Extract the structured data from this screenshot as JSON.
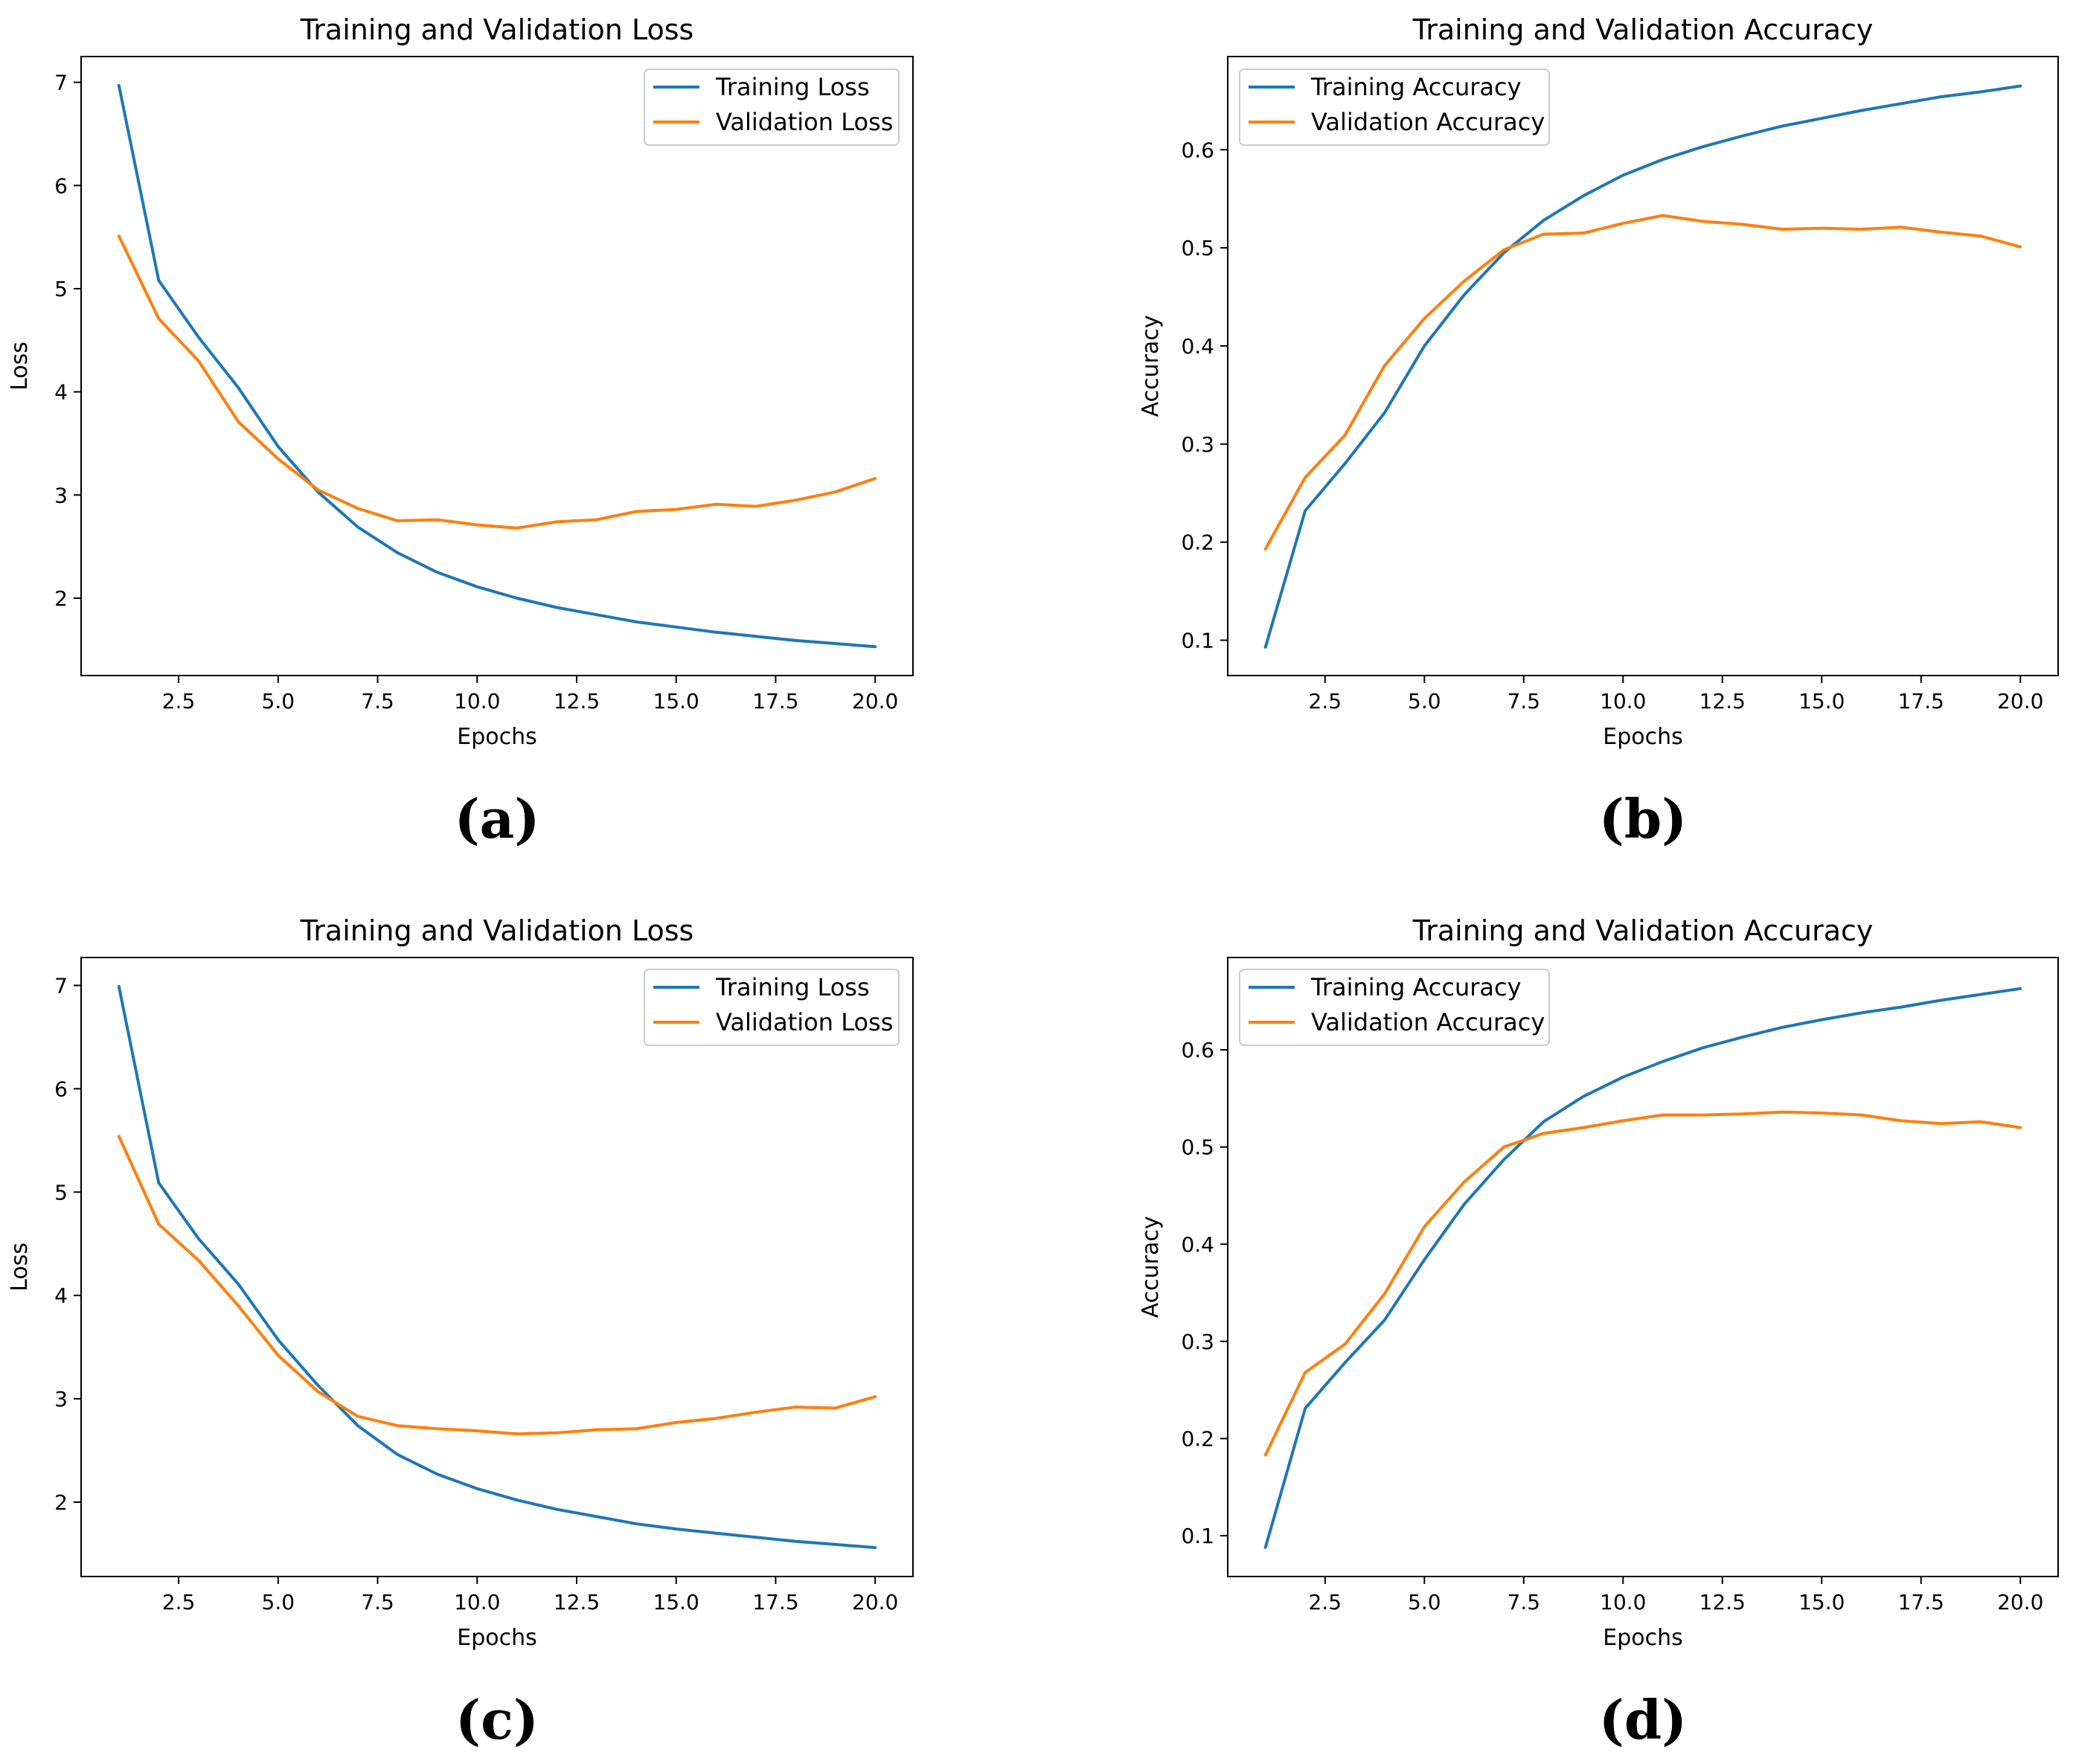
{
  "chart_data": [
    {
      "panel_label": "(a)",
      "type": "line",
      "title": "Training and Validation Loss",
      "xlabel": "Epochs",
      "ylabel": "Loss",
      "xlim": [
        0.05,
        20.95
      ],
      "ylim": [
        1.25,
        7.25
      ],
      "xticks": [
        2.5,
        5.0,
        7.5,
        10.0,
        12.5,
        15.0,
        17.5,
        20.0
      ],
      "xtick_labels": [
        "2.5",
        "5.0",
        "7.5",
        "10.0",
        "12.5",
        "15.0",
        "17.5",
        "20.0"
      ],
      "yticks": [
        2,
        3,
        4,
        5,
        6,
        7
      ],
      "ytick_labels": [
        "2",
        "3",
        "4",
        "5",
        "6",
        "7"
      ],
      "legend_position": "top-right",
      "x": [
        1,
        2,
        3,
        4,
        5,
        6,
        7,
        8,
        9,
        10,
        11,
        12,
        13,
        14,
        15,
        16,
        17,
        18,
        19,
        20
      ],
      "series": [
        {
          "name": "Training Loss",
          "color": "#1f77b4",
          "values": [
            6.97,
            5.08,
            4.53,
            4.04,
            3.47,
            3.03,
            2.69,
            2.44,
            2.25,
            2.11,
            2.0,
            1.91,
            1.84,
            1.77,
            1.72,
            1.67,
            1.63,
            1.59,
            1.56,
            1.53
          ]
        },
        {
          "name": "Validation Loss",
          "color": "#ff7f0e",
          "values": [
            5.51,
            4.71,
            4.3,
            3.71,
            3.35,
            3.05,
            2.87,
            2.75,
            2.76,
            2.71,
            2.68,
            2.74,
            2.76,
            2.84,
            2.86,
            2.91,
            2.89,
            2.95,
            3.03,
            3.16
          ]
        }
      ]
    },
    {
      "panel_label": "(b)",
      "type": "line",
      "title": "Training and Validation Accuracy",
      "xlabel": "Epochs",
      "ylabel": "Accuracy",
      "xlim": [
        0.05,
        20.95
      ],
      "ylim": [
        0.064,
        0.695
      ],
      "xticks": [
        2.5,
        5.0,
        7.5,
        10.0,
        12.5,
        15.0,
        17.5,
        20.0
      ],
      "xtick_labels": [
        "2.5",
        "5.0",
        "7.5",
        "10.0",
        "12.5",
        "15.0",
        "17.5",
        "20.0"
      ],
      "yticks": [
        0.1,
        0.2,
        0.3,
        0.4,
        0.5,
        0.6
      ],
      "ytick_labels": [
        "0.1",
        "0.2",
        "0.3",
        "0.4",
        "0.5",
        "0.6"
      ],
      "legend_position": "top-left",
      "x": [
        1,
        2,
        3,
        4,
        5,
        6,
        7,
        8,
        9,
        10,
        11,
        12,
        13,
        14,
        15,
        16,
        17,
        18,
        19,
        20
      ],
      "series": [
        {
          "name": "Training Accuracy",
          "color": "#1f77b4",
          "values": [
            0.093,
            0.232,
            0.28,
            0.332,
            0.4,
            0.452,
            0.495,
            0.528,
            0.553,
            0.574,
            0.59,
            0.603,
            0.614,
            0.624,
            0.632,
            0.64,
            0.647,
            0.654,
            0.659,
            0.665
          ]
        },
        {
          "name": "Validation Accuracy",
          "color": "#ff7f0e",
          "values": [
            0.193,
            0.266,
            0.309,
            0.38,
            0.428,
            0.466,
            0.498,
            0.514,
            0.515,
            0.525,
            0.533,
            0.527,
            0.524,
            0.519,
            0.52,
            0.519,
            0.521,
            0.516,
            0.512,
            0.501
          ]
        }
      ]
    },
    {
      "panel_label": "(c)",
      "type": "line",
      "title": "Training and Validation Loss",
      "xlabel": "Epochs",
      "ylabel": "Loss",
      "xlim": [
        0.05,
        20.95
      ],
      "ylim": [
        1.28,
        7.27
      ],
      "xticks": [
        2.5,
        5.0,
        7.5,
        10.0,
        12.5,
        15.0,
        17.5,
        20.0
      ],
      "xtick_labels": [
        "2.5",
        "5.0",
        "7.5",
        "10.0",
        "12.5",
        "15.0",
        "17.5",
        "20.0"
      ],
      "yticks": [
        2,
        3,
        4,
        5,
        6,
        7
      ],
      "ytick_labels": [
        "2",
        "3",
        "4",
        "5",
        "6",
        "7"
      ],
      "legend_position": "top-right",
      "x": [
        1,
        2,
        3,
        4,
        5,
        6,
        7,
        8,
        9,
        10,
        11,
        12,
        13,
        14,
        15,
        16,
        17,
        18,
        19,
        20
      ],
      "series": [
        {
          "name": "Training Loss",
          "color": "#1f77b4",
          "values": [
            6.99,
            5.09,
            4.55,
            4.11,
            3.57,
            3.13,
            2.74,
            2.46,
            2.27,
            2.13,
            2.02,
            1.93,
            1.86,
            1.79,
            1.74,
            1.7,
            1.66,
            1.62,
            1.59,
            1.56
          ]
        },
        {
          "name": "Validation Loss",
          "color": "#ff7f0e",
          "values": [
            5.54,
            4.69,
            4.34,
            3.9,
            3.42,
            3.07,
            2.83,
            2.74,
            2.71,
            2.69,
            2.66,
            2.67,
            2.7,
            2.71,
            2.77,
            2.81,
            2.87,
            2.92,
            2.91,
            3.02
          ]
        }
      ]
    },
    {
      "panel_label": "(d)",
      "type": "line",
      "title": "Training and Validation Accuracy",
      "xlabel": "Epochs",
      "ylabel": "Accuracy",
      "xlim": [
        0.05,
        20.95
      ],
      "ylim": [
        0.058,
        0.695
      ],
      "xticks": [
        2.5,
        5.0,
        7.5,
        10.0,
        12.5,
        15.0,
        17.5,
        20.0
      ],
      "xtick_labels": [
        "2.5",
        "5.0",
        "7.5",
        "10.0",
        "12.5",
        "15.0",
        "17.5",
        "20.0"
      ],
      "yticks": [
        0.1,
        0.2,
        0.3,
        0.4,
        0.5,
        0.6
      ],
      "ytick_labels": [
        "0.1",
        "0.2",
        "0.3",
        "0.4",
        "0.5",
        "0.6"
      ],
      "legend_position": "top-left",
      "x": [
        1,
        2,
        3,
        4,
        5,
        6,
        7,
        8,
        9,
        10,
        11,
        12,
        13,
        14,
        15,
        16,
        17,
        18,
        19,
        20
      ],
      "series": [
        {
          "name": "Training Accuracy",
          "color": "#1f77b4",
          "values": [
            0.088,
            0.231,
            0.278,
            0.322,
            0.384,
            0.441,
            0.487,
            0.526,
            0.552,
            0.572,
            0.588,
            0.602,
            0.613,
            0.623,
            0.631,
            0.638,
            0.644,
            0.651,
            0.657,
            0.663
          ]
        },
        {
          "name": "Validation Accuracy",
          "color": "#ff7f0e",
          "values": [
            0.183,
            0.268,
            0.297,
            0.349,
            0.418,
            0.464,
            0.5,
            0.514,
            0.52,
            0.527,
            0.533,
            0.533,
            0.534,
            0.536,
            0.535,
            0.533,
            0.527,
            0.524,
            0.526,
            0.52
          ]
        }
      ]
    }
  ]
}
